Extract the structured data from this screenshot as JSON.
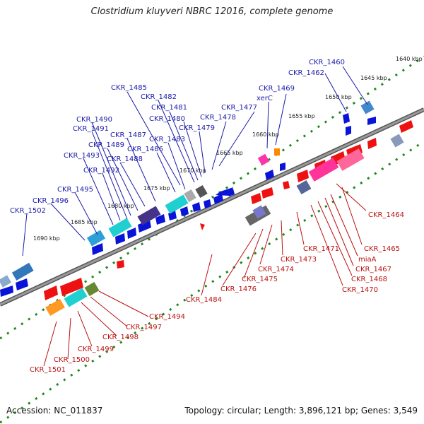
{
  "header": {
    "title": "Clostridium kluyveri NBRC 12016, complete genome"
  },
  "footer": {
    "accession": "Accession: NC_011837",
    "summary": "Topology: circular; Length: 3,896,121 bp; Genes: 3,549"
  },
  "ticks": [
    "1640 kbp",
    "1645 kbp",
    "1650 kbp",
    "1655 kbp",
    "1660 kbp",
    "1665 kbp",
    "1670 kbp",
    "1675 kbp",
    "1680 kbp",
    "1685 kbp",
    "1690 kbp"
  ],
  "genes_top": [
    "CKR_1460",
    "CKR_1462",
    "CKR_1469",
    "xerC",
    "CKR_1477",
    "CKR_1478",
    "CKR_1479",
    "CKR_1480",
    "CKR_1481",
    "CKR_1482",
    "CKR_1485",
    "CKR_1483",
    "CKR_1486",
    "CKR_1487",
    "CKR_1488",
    "CKR_1489",
    "CKR_1490",
    "CKR_1491",
    "CKR_1492",
    "CKR_1493",
    "CKR_1495",
    "CKR_1496",
    "CKR_1502"
  ],
  "genes_bottom": [
    "CKR_1464",
    "CKR_1465",
    "miaA",
    "CKR_1467",
    "CKR_1468",
    "CKR_1470",
    "CKR_1471",
    "CKR_1473",
    "CKR_1474",
    "CKR_1475",
    "CKR_1476",
    "CKR_1484",
    "CKR_1494",
    "CKR_1497",
    "CKR_1498",
    "CKR_1499",
    "CKR_1500",
    "CKR_1501"
  ],
  "colors": {
    "strand_forward": "#0a14d8",
    "strand_reverse": "#ee1111",
    "genome_line": "#777777",
    "tick_dots": "#1d8a1d",
    "label_top": "#1a1aaa",
    "label_bottom": "#bb1111"
  }
}
